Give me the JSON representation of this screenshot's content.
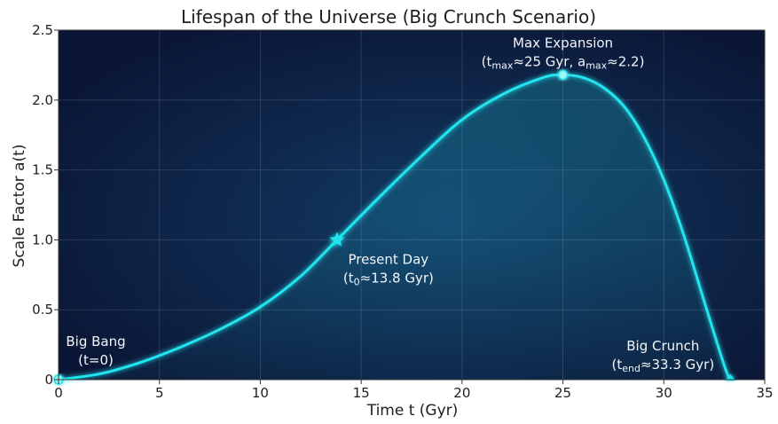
{
  "chart_data": {
    "type": "line",
    "title": "Lifespan of the Universe (Big Crunch Scenario)",
    "xlabel": "Time t (Gyr)",
    "ylabel": "Scale Factor a(t)",
    "xlim": [
      0,
      35
    ],
    "ylim": [
      0,
      2.5
    ],
    "xticks": [
      0,
      5,
      10,
      15,
      20,
      25,
      30,
      35
    ],
    "yticks": [
      0,
      0.5,
      1.0,
      1.5,
      2.0,
      2.5
    ],
    "xtick_labels": [
      "0",
      "5",
      "10",
      "15",
      "20",
      "25",
      "30",
      "35"
    ],
    "ytick_labels": [
      "0",
      "0.5",
      "1.0",
      "1.5",
      "2.0",
      "2.5"
    ],
    "grid": true,
    "line_color": "#22e3ee",
    "background_colors": [
      "#0b1636",
      "#123a63"
    ],
    "series": [
      {
        "x": [
          0,
          2,
          4,
          6,
          8,
          10,
          12,
          13.8,
          16,
          18,
          20,
          22,
          24,
          25,
          26,
          27,
          28,
          29,
          30,
          31,
          32,
          33,
          33.3
        ],
        "y": [
          0,
          0.04,
          0.12,
          0.23,
          0.36,
          0.52,
          0.74,
          1.0,
          1.32,
          1.6,
          1.86,
          2.04,
          2.16,
          2.18,
          2.16,
          2.09,
          1.96,
          1.74,
          1.43,
          1.03,
          0.56,
          0.1,
          0
        ]
      }
    ],
    "markers": [
      {
        "x": 0,
        "y": 0,
        "shape": "dot"
      },
      {
        "x": 13.8,
        "y": 1.0,
        "shape": "star"
      },
      {
        "x": 25,
        "y": 2.18,
        "shape": "dot"
      },
      {
        "x": 33.3,
        "y": 0,
        "shape": "triangle"
      }
    ],
    "annotations": [
      {
        "id": "max",
        "x": 25,
        "y": 2.18,
        "line1": "Max Expansion",
        "line2": [
          [
            "(t",
            ""
          ],
          [
            "max",
            "sub"
          ],
          [
            "≈25 Gyr, a",
            ""
          ],
          [
            "max",
            "sub"
          ],
          [
            "≈2.2)",
            ""
          ]
        ]
      },
      {
        "id": "present",
        "x": 13.8,
        "y": 1.0,
        "line1": "Present Day",
        "line2": [
          [
            "(t",
            ""
          ],
          [
            "0",
            "sub"
          ],
          [
            "≈13.8 Gyr)",
            ""
          ]
        ]
      },
      {
        "id": "bang",
        "x": 0,
        "y": 0,
        "line1": "Big Bang",
        "line2": [
          [
            "(t=0)",
            ""
          ]
        ]
      },
      {
        "id": "crunch",
        "x": 33.3,
        "y": 0,
        "line1": "Big Crunch",
        "line2": [
          [
            "(t",
            ""
          ],
          [
            "end",
            "sub"
          ],
          [
            "≈33.3 Gyr)",
            ""
          ]
        ]
      }
    ]
  }
}
